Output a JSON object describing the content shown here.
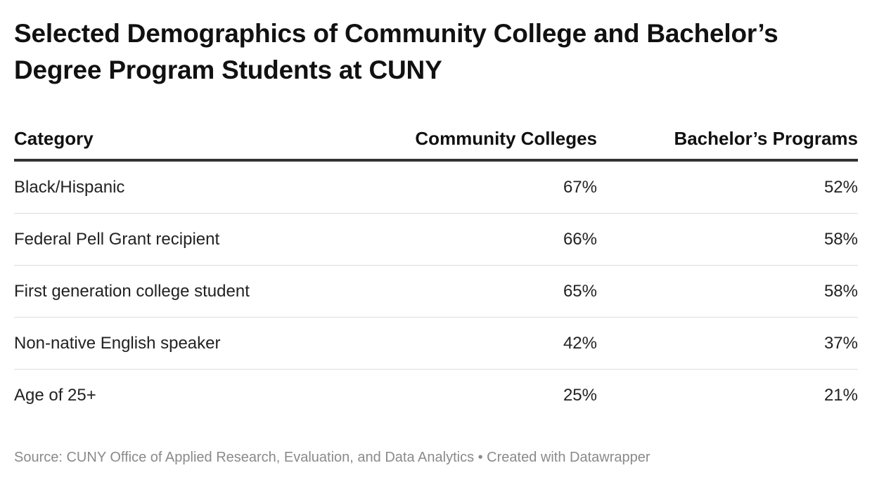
{
  "title": "Selected Demographics of Community College and Bachelor’s Degree Program Students at CUNY",
  "chart_data": {
    "type": "table",
    "title": "Selected Demographics of Community College and Bachelor’s Degree Program Students at CUNY",
    "columns": [
      "Category",
      "Community Colleges",
      "Bachelor’s Programs"
    ],
    "rows": [
      [
        "Black/Hispanic",
        "67%",
        "52%"
      ],
      [
        "Federal Pell Grant recipient",
        "66%",
        "58%"
      ],
      [
        "First generation college student",
        "65%",
        "58%"
      ],
      [
        "Non-native English speaker",
        "42%",
        "37%"
      ],
      [
        "Age of 25+",
        "25%",
        "21%"
      ]
    ]
  },
  "footer": {
    "source": "Source: CUNY Office of Applied Research, Evaluation, and Data Analytics • Created with Datawrapper"
  }
}
